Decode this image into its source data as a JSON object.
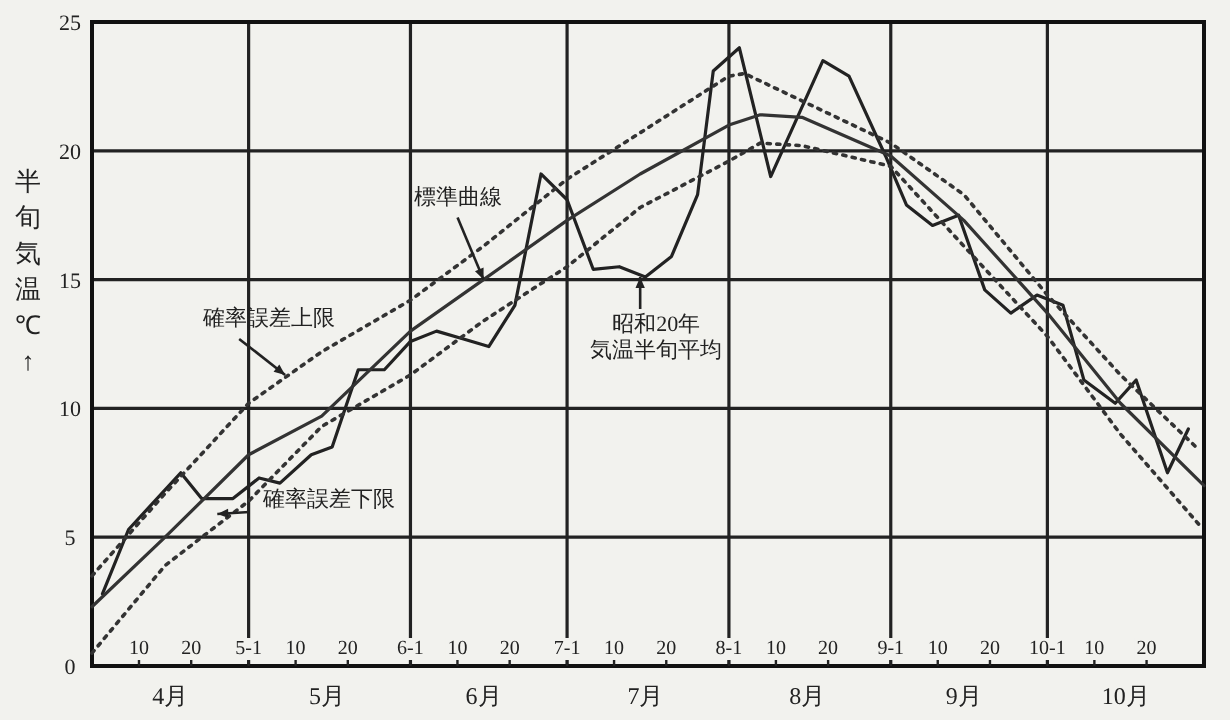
{
  "chart_data": {
    "type": "line",
    "ylabel": "半旬気温℃↑",
    "xlim": [
      "--04-01",
      "--10-31"
    ],
    "ylim": [
      0,
      25
    ],
    "yticks": [
      0,
      5,
      10,
      15,
      20,
      25
    ],
    "xticks": [
      {
        "value": "--04-10",
        "label": "10"
      },
      {
        "value": "--04-20",
        "label": "20"
      },
      {
        "value": "--05-01",
        "label": "5-1"
      },
      {
        "value": "--05-10",
        "label": "10"
      },
      {
        "value": "--05-20",
        "label": "20"
      },
      {
        "value": "--06-01",
        "label": "6-1"
      },
      {
        "value": "--06-10",
        "label": "10"
      },
      {
        "value": "--06-20",
        "label": "20"
      },
      {
        "value": "--07-01",
        "label": "7-1"
      },
      {
        "value": "--07-10",
        "label": "10"
      },
      {
        "value": "--07-20",
        "label": "20"
      },
      {
        "value": "--08-01",
        "label": "8-1"
      },
      {
        "value": "--08-10",
        "label": "10"
      },
      {
        "value": "--08-20",
        "label": "20"
      },
      {
        "value": "--09-01",
        "label": "9-1"
      },
      {
        "value": "--09-10",
        "label": "10"
      },
      {
        "value": "--09-20",
        "label": "20"
      },
      {
        "value": "--10-01",
        "label": "10-1"
      },
      {
        "value": "--10-10",
        "label": "10"
      },
      {
        "value": "--10-20",
        "label": "20"
      }
    ],
    "x2lim": [
      "--04-01",
      "--10-31"
    ],
    "x2ticks": [
      {
        "value": "--04-16",
        "label": "4月"
      },
      {
        "value": "--05-16",
        "label": "5月"
      },
      {
        "value": "--06-15",
        "label": "6月"
      },
      {
        "value": "--07-16",
        "label": "7月"
      },
      {
        "value": "--08-16",
        "label": "8月"
      },
      {
        "value": "--09-15",
        "label": "9月"
      },
      {
        "value": "--10-16",
        "label": "10月"
      }
    ],
    "grid": "y",
    "ref_lines": [
      {
        "axis": "x",
        "value": "--05-01",
        "color": "#222222"
      },
      {
        "axis": "x",
        "value": "--06-01",
        "color": "#222222"
      },
      {
        "axis": "x",
        "value": "--07-01",
        "color": "#222222"
      },
      {
        "axis": "x",
        "value": "--08-01",
        "color": "#222222"
      },
      {
        "axis": "x",
        "value": "--09-01",
        "color": "#222222"
      },
      {
        "axis": "x",
        "value": "--10-01",
        "color": "#222222"
      }
    ],
    "series": [
      {
        "color": "#222222",
        "line_style": "solid",
        "x": [
          "--04-03",
          "--04-08",
          "--04-18",
          "--04-22",
          "--04-28",
          "--05-03",
          "--05-07",
          "--05-13",
          "--05-17",
          "--05-22",
          "--05-27",
          "--06-01",
          "--06-06",
          "--06-11",
          "--06-16",
          "--06-21",
          "--06-26",
          "--07-01",
          "--07-06",
          "--07-11",
          "--07-16",
          "--07-21",
          "--07-26",
          "--07-29",
          "--08-03",
          "--08-09",
          "--08-19",
          "--08-24",
          "--08-31",
          "--09-04",
          "--09-09",
          "--09-14",
          "--09-19",
          "--09-24",
          "--09-29",
          "--10-04",
          "--10-08",
          "--10-14",
          "--10-18",
          "--10-24",
          "--10-28"
        ],
        "values": [
          2.8,
          5.3,
          7.5,
          6.5,
          6.5,
          7.3,
          7.1,
          8.2,
          8.5,
          11.5,
          11.5,
          12.6,
          13.0,
          12.7,
          12.4,
          14.0,
          19.1,
          18.1,
          15.4,
          15.5,
          15.1,
          15.9,
          18.3,
          23.1,
          24.0,
          19.0,
          23.5,
          22.9,
          19.8,
          17.9,
          17.1,
          17.5,
          14.6,
          13.7,
          14.4,
          14.0,
          11.1,
          10.2,
          11.1,
          7.5,
          9.2
        ]
      },
      {
        "color": "#333333",
        "line_style": "solid",
        "x": [
          "--04-01",
          "--04-15",
          "--05-01",
          "--05-15",
          "--06-01",
          "--06-15",
          "--07-01",
          "--07-15",
          "--08-01",
          "--08-07",
          "--08-15",
          "--09-01",
          "--09-15",
          "--10-01",
          "--10-15",
          "--10-31"
        ],
        "values": [
          2.3,
          5.0,
          8.2,
          9.7,
          13.0,
          15.0,
          17.3,
          19.1,
          21.0,
          21.4,
          21.3,
          19.8,
          17.3,
          13.7,
          10.2,
          7.0
        ]
      },
      {
        "color": "#333333",
        "line_style": "dotted",
        "x": [
          "--04-01",
          "--04-15",
          "--05-01",
          "--05-15",
          "--06-01",
          "--06-15",
          "--07-01",
          "--07-15",
          "--08-01",
          "--08-04",
          "--09-01",
          "--09-15",
          "--10-01",
          "--10-15",
          "--10-30"
        ],
        "values": [
          3.5,
          6.7,
          10.2,
          12.2,
          14.2,
          16.3,
          18.9,
          20.7,
          22.9,
          23.0,
          20.3,
          18.3,
          14.4,
          11.3,
          8.4
        ]
      },
      {
        "color": "#333333",
        "line_style": "dotted",
        "x": [
          "--04-01",
          "--04-15",
          "--05-01",
          "--05-15",
          "--06-01",
          "--06-15",
          "--07-01",
          "--07-15",
          "--08-01",
          "--08-07",
          "--08-15",
          "--09-01",
          "--09-15",
          "--10-01",
          "--10-15",
          "--10-30"
        ],
        "values": [
          0.5,
          3.9,
          6.4,
          9.3,
          11.3,
          13.4,
          15.5,
          17.8,
          19.6,
          20.3,
          20.2,
          19.4,
          16.3,
          12.8,
          9.0,
          5.5
        ]
      }
    ],
    "annotations": [
      {
        "text": "標準曲線",
        "x": "--06-15",
        "y": 15.0
      },
      {
        "text": "確率誤差上限",
        "x": "--05-08",
        "y": 11.3
      },
      {
        "text": "確率誤差下限",
        "x": "--04-25",
        "y": 5.9
      },
      {
        "text": "昭和20年",
        "x": "--07-15",
        "y": 15.1
      },
      "気温半旬平均"
    ]
  }
}
